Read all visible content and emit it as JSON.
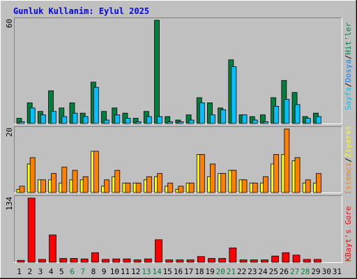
{
  "title": "Gunluk Kullanim: Eylul 2025",
  "colors": {
    "background": "#c0c0c0",
    "plot_background": "#c0c0c0",
    "title": "#0000ff",
    "hits": "#008040",
    "files": "#0080ff",
    "pages": "#00c0ff",
    "visits": "#ffff00",
    "sites": "#ff8000",
    "kbytes": "#ff0000",
    "weekend_label": "#008040",
    "weekday_label": "#000000"
  },
  "chart_data": [
    {
      "type": "bar",
      "panel": "hits-files-pages",
      "ytick_top": "60",
      "ylim": [
        0,
        60
      ],
      "legend_right": [
        "Sayfa",
        "/",
        "Dosya",
        "/",
        "Hit'ler"
      ],
      "categories": [
        "1",
        "2",
        "3",
        "4",
        "5",
        "6",
        "7",
        "8",
        "9",
        "10",
        "11",
        "12",
        "13",
        "14",
        "15",
        "16",
        "17",
        "18",
        "19",
        "20",
        "21",
        "22",
        "23",
        "24",
        "25",
        "26",
        "27",
        "28",
        "29",
        "30",
        "31"
      ],
      "weekend": [
        false,
        false,
        false,
        false,
        false,
        true,
        true,
        false,
        false,
        false,
        false,
        false,
        true,
        true,
        false,
        false,
        false,
        false,
        false,
        true,
        true,
        false,
        false,
        false,
        false,
        false,
        true,
        true,
        false,
        false,
        false
      ],
      "series": [
        {
          "name": "Hit'ler",
          "color_key": "hits",
          "values": [
            3,
            12,
            7,
            19,
            9,
            12,
            6,
            24,
            7,
            9,
            6,
            3,
            7,
            60,
            4,
            2,
            5,
            15,
            12,
            9,
            37,
            5,
            4,
            5,
            15,
            25,
            18,
            4,
            6,
            0,
            0
          ]
        },
        {
          "name": "Dosya",
          "color_key": "files",
          "values": [
            1,
            9,
            5,
            7,
            4,
            6,
            4,
            21,
            2,
            5,
            3,
            1,
            4,
            4,
            1,
            1,
            2,
            12,
            5,
            8,
            33,
            5,
            2,
            1,
            10,
            14,
            11,
            3,
            4,
            0,
            0
          ]
        },
        {
          "name": "Sayfa",
          "color_key": "pages",
          "values": [
            1,
            9,
            5,
            7,
            4,
            6,
            4,
            21,
            2,
            5,
            3,
            1,
            4,
            4,
            1,
            1,
            2,
            12,
            5,
            8,
            33,
            5,
            2,
            1,
            10,
            14,
            11,
            3,
            4,
            0,
            0
          ]
        }
      ]
    },
    {
      "type": "bar",
      "panel": "visits-sites",
      "ytick_top": "20",
      "ylim": [
        0,
        20
      ],
      "legend_right": [
        "Ziyaret",
        "/",
        "Istemci"
      ],
      "categories": [
        "1",
        "2",
        "3",
        "4",
        "5",
        "6",
        "7",
        "8",
        "9",
        "10",
        "11",
        "12",
        "13",
        "14",
        "15",
        "16",
        "17",
        "18",
        "19",
        "20",
        "21",
        "22",
        "23",
        "24",
        "25",
        "26",
        "27",
        "28",
        "29",
        "30",
        "31"
      ],
      "series": [
        {
          "name": "Ziyaret",
          "color_key": "visits",
          "values": [
            1,
            9,
            4,
            4,
            3,
            4,
            4,
            13,
            2,
            5,
            3,
            3,
            4,
            5,
            2,
            1,
            3,
            12,
            5,
            6,
            7,
            4,
            3,
            3,
            9,
            12,
            10,
            3,
            3,
            0,
            0
          ]
        },
        {
          "name": "Istemci",
          "color_key": "sites",
          "values": [
            2,
            11,
            4,
            6,
            8,
            7,
            5,
            13,
            4,
            7,
            3,
            3,
            5,
            6,
            3,
            2,
            3,
            12,
            9,
            6,
            7,
            4,
            3,
            5,
            12,
            20,
            11,
            4,
            6,
            0,
            0
          ]
        }
      ]
    },
    {
      "type": "bar",
      "panel": "kbytes",
      "ytick_top": "134",
      "ylim": [
        0,
        134
      ],
      "legend_right": [
        "KBayt's Gore"
      ],
      "categories": [
        "1",
        "2",
        "3",
        "4",
        "5",
        "6",
        "7",
        "8",
        "9",
        "10",
        "11",
        "12",
        "13",
        "14",
        "15",
        "16",
        "17",
        "18",
        "19",
        "20",
        "21",
        "22",
        "23",
        "24",
        "25",
        "26",
        "27",
        "28",
        "29",
        "30",
        "31"
      ],
      "series": [
        {
          "name": "KBayt's Gore",
          "color_key": "kbytes",
          "values": [
            4,
            134,
            6,
            57,
            8,
            8,
            7,
            20,
            6,
            7,
            7,
            5,
            7,
            47,
            5,
            5,
            5,
            12,
            8,
            8,
            30,
            5,
            5,
            5,
            13,
            20,
            15,
            6,
            6,
            0,
            0
          ]
        }
      ]
    }
  ]
}
